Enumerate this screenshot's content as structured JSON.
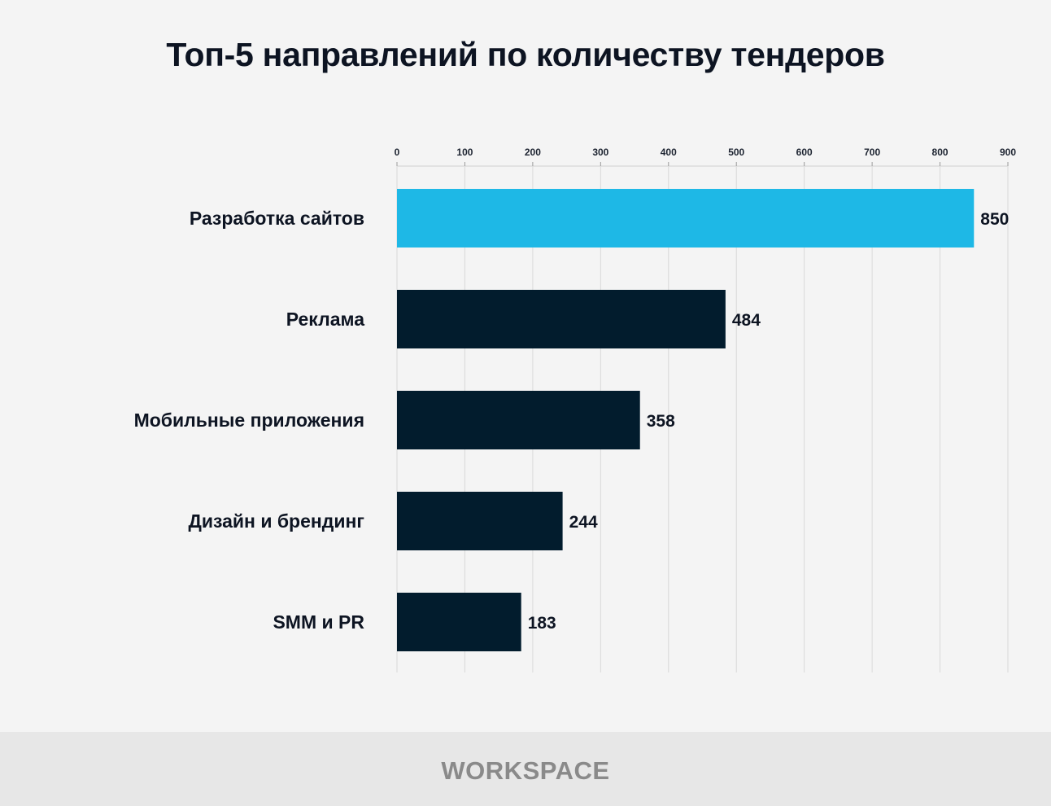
{
  "chart_data": {
    "type": "bar",
    "orientation": "horizontal",
    "title": "Топ-5 направлений по количеству тендеров",
    "categories": [
      "Разработка сайтов",
      "Реклама",
      "Мобильные приложения",
      "Дизайн и брендинг",
      "SMM и PR"
    ],
    "values": [
      850,
      484,
      358,
      244,
      183
    ],
    "xticks": [
      "0",
      "100",
      "200",
      "300",
      "400",
      "500",
      "600",
      "700",
      "800",
      "900"
    ],
    "xlim": [
      0,
      900
    ],
    "axis_position": "top",
    "grid": true,
    "highlight_color": "#1eb8e6",
    "bar_color": "#021c2d"
  },
  "footer": {
    "logo_text": "WORKSPACE"
  }
}
